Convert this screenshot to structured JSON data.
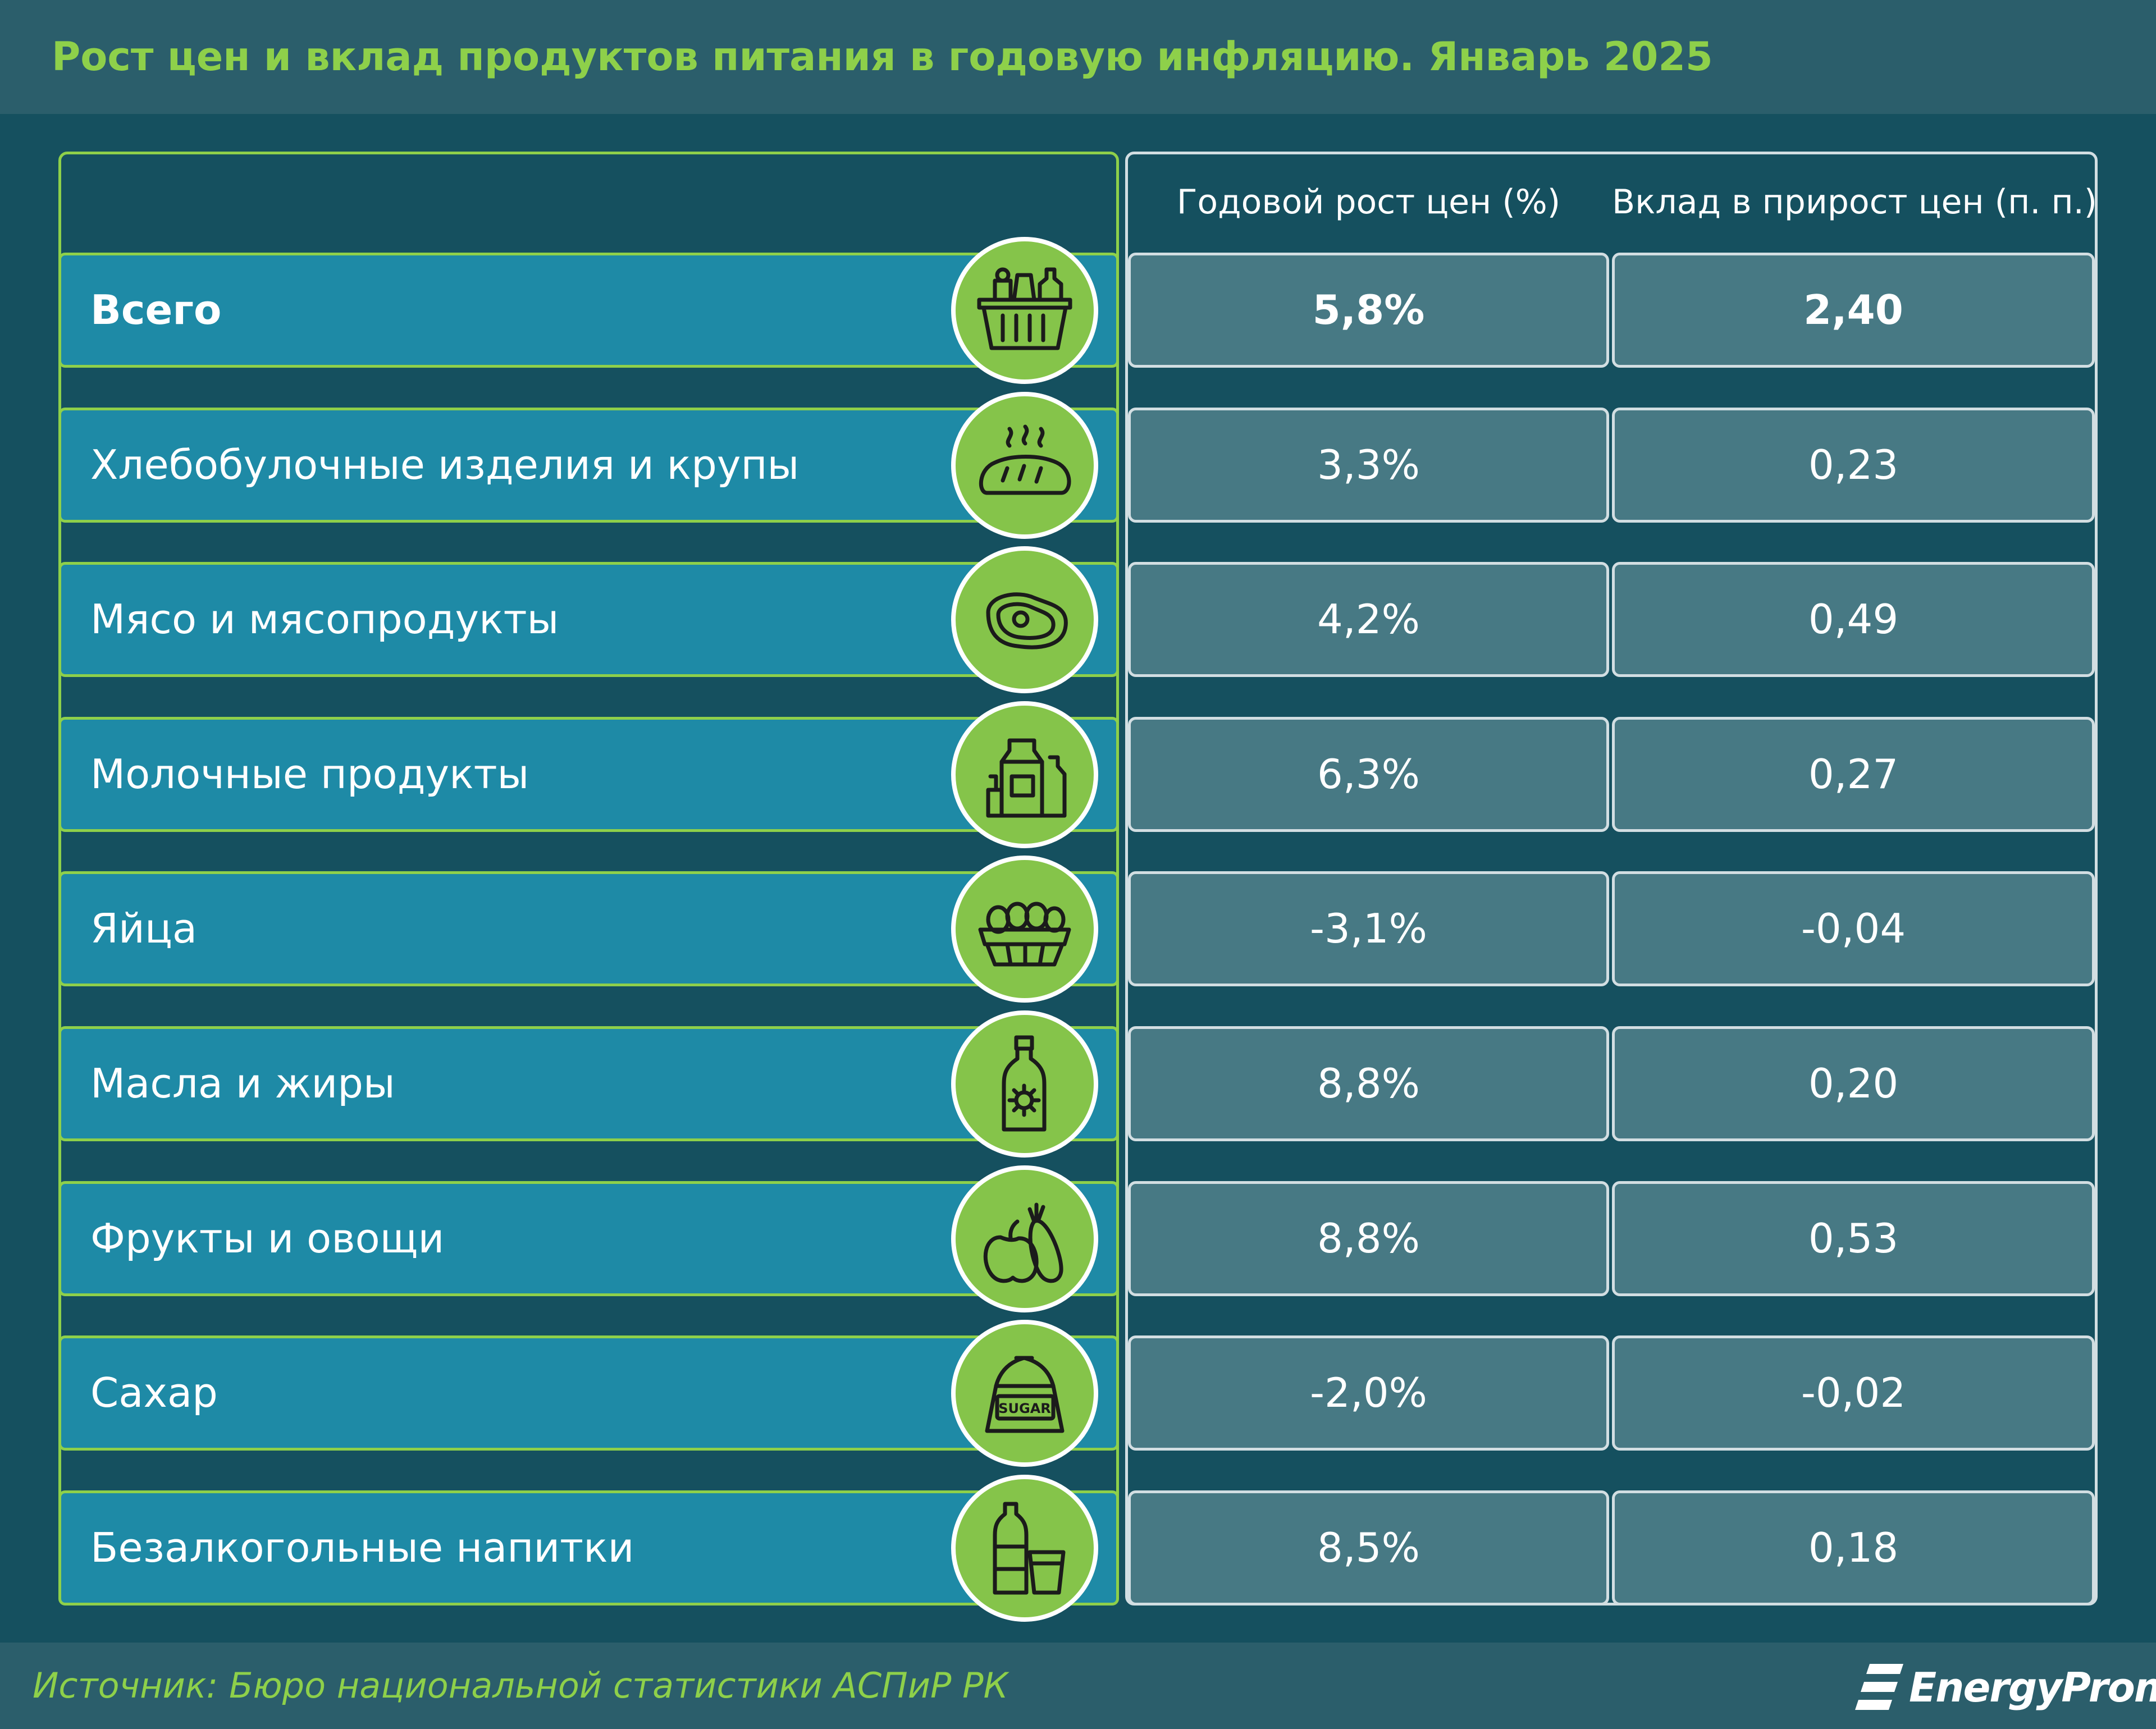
{
  "title": "Рост цен и вклад продуктов питания в годовую инфляцию. Январь 2025",
  "footer": {
    "source": "Источник: Бюро национальной статистики АСПиР РК",
    "brand": "EnergyProm"
  },
  "colors": {
    "accent_green": "#8ed04a",
    "label_fill": "#1e8aa6",
    "value_fill": "#477984",
    "background": "#15505f"
  },
  "chart_data": {
    "type": "table",
    "title": "Рост цен и вклад продуктов питания в годовую инфляцию. Январь 2025",
    "columns": [
      "Годовой рост цен (%)",
      "Вклад в прирост цен (п. п.)"
    ],
    "rows": [
      {
        "category": "Всего",
        "icon": "grocery-basket-icon",
        "growth": "5,8%",
        "contribution": "2,40",
        "growth_value": 5.8,
        "contribution_value": 2.4
      },
      {
        "category": "Хлебобулочные изделия и крупы",
        "icon": "bread-icon",
        "growth": "3,3%",
        "contribution": "0,23",
        "growth_value": 3.3,
        "contribution_value": 0.23
      },
      {
        "category": "Мясо и мясопродукты",
        "icon": "meat-steak-icon",
        "growth": "4,2%",
        "contribution": "0,49",
        "growth_value": 4.2,
        "contribution_value": 0.49
      },
      {
        "category": "Молочные продукты",
        "icon": "dairy-products-icon",
        "growth": "6,3%",
        "contribution": "0,27",
        "growth_value": 6.3,
        "contribution_value": 0.27
      },
      {
        "category": "Яйца",
        "icon": "eggs-carton-icon",
        "growth": "-3,1%",
        "contribution": "-0,04",
        "growth_value": -3.1,
        "contribution_value": -0.04
      },
      {
        "category": "Масла и жиры",
        "icon": "oil-bottle-icon",
        "growth": "8,8%",
        "contribution": "0,20",
        "growth_value": 8.8,
        "contribution_value": 0.2
      },
      {
        "category": "Фрукты и овощи",
        "icon": "fruit-vegetable-icon",
        "growth": "8,8%",
        "contribution": "0,53",
        "growth_value": 8.8,
        "contribution_value": 0.53
      },
      {
        "category": "Сахар",
        "icon": "sugar-bag-icon",
        "growth": "-2,0%",
        "contribution": "-0,02",
        "growth_value": -2.0,
        "contribution_value": -0.02
      },
      {
        "category": "Безалкогольные напитки",
        "icon": "drinks-icon",
        "growth": "8,5%",
        "contribution": "0,18",
        "growth_value": 8.5,
        "contribution_value": 0.18
      }
    ]
  }
}
